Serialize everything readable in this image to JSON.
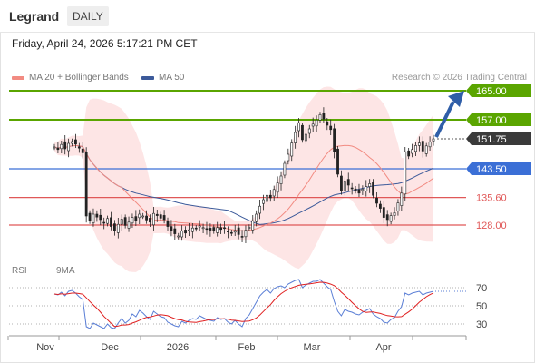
{
  "header": {
    "ticker": "Legrand",
    "period": "DAILY"
  },
  "datetime": "Friday, April 24, 2026 5:17:21 PM CET",
  "legend": {
    "ma20_label": "MA 20 + Bollinger Bands",
    "ma50_label": "MA 50",
    "credit": "Research © 2026 Trading Central"
  },
  "rsi_legend": {
    "rsi_label": "RSI",
    "ma_label": "9MA"
  },
  "colors": {
    "ma20": "#f28b82",
    "ma50": "#3c5a9a",
    "bollinger": "#fde1e1",
    "green_level": "#5aa500",
    "blue_level": "#3b6fd6",
    "red_level": "#e05858",
    "price_tag": "#3a3a3a",
    "arrow": "#2f5ea8",
    "rsi": "#5b7fd6",
    "rsi_ma": "#e02020"
  },
  "chart_data": {
    "type": "candlestick",
    "x_ticks": [
      "Nov",
      "Dec",
      "2026",
      "Feb",
      "Mar",
      "Apr"
    ],
    "y_ticks": [
      "165.00",
      "157.00",
      "151.75",
      "143.50",
      "135.60",
      "128.00"
    ],
    "levels": [
      {
        "label": "165.00",
        "value": 165.0,
        "kind": "resistance"
      },
      {
        "label": "157.00",
        "value": 157.0,
        "kind": "resistance"
      },
      {
        "label": "151.75",
        "value": 151.75,
        "kind": "last-price"
      },
      {
        "label": "143.50",
        "value": 143.5,
        "kind": "pivot"
      },
      {
        "label": "135.60",
        "value": 135.6,
        "kind": "support"
      },
      {
        "label": "128.00",
        "value": 128.0,
        "kind": "support"
      }
    ],
    "last_price": 151.75,
    "target": 165.0,
    "price_range": [
      122,
      168
    ],
    "closes": [
      149.5,
      148.8,
      150.2,
      149.0,
      150.5,
      151.0,
      150.3,
      149.2,
      147.9,
      130.5,
      129.1,
      131.0,
      130.2,
      129.5,
      128.7,
      129.8,
      127.6,
      126.4,
      128.2,
      129.6,
      127.9,
      128.8,
      130.1,
      129.3,
      131.0,
      130.5,
      129.4,
      128.8,
      131.2,
      130.6,
      129.9,
      129.5,
      127.6,
      126.5,
      125.6,
      125.0,
      126.4,
      125.8,
      126.7,
      127.2,
      127.0,
      127.8,
      127.3,
      126.9,
      126.6,
      126.4,
      127.3,
      126.8,
      127.1,
      126.2,
      125.8,
      126.5,
      125.4,
      124.8,
      126.6,
      127.4,
      129.2,
      131.0,
      133.2,
      135.0,
      136.2,
      135.5,
      137.8,
      139.6,
      141.5,
      145.0,
      147.5,
      150.6,
      153.5,
      156.2,
      151.5,
      153.0,
      154.5,
      155.8,
      156.9,
      158.4,
      157.2,
      155.5,
      154.3,
      148.2,
      142.0,
      137.4,
      140.1,
      139.0,
      138.2,
      137.5,
      136.8,
      137.9,
      138.6,
      139.4,
      136.2,
      134.0,
      132.6,
      130.1,
      129.5,
      130.6,
      131.4,
      134.1,
      136.8,
      148.2,
      147.0,
      148.8,
      149.9,
      150.6,
      148.4,
      149.8,
      150.9,
      151.75
    ],
    "rsi": {
      "ticks": [
        "70",
        "50",
        "30"
      ],
      "range": [
        20,
        80
      ],
      "values": [
        63,
        62,
        65,
        61,
        66,
        67,
        64,
        60,
        57,
        27,
        25,
        31,
        29,
        27,
        25,
        30,
        26,
        25,
        31,
        36,
        31,
        34,
        41,
        38,
        45,
        42,
        38,
        35,
        44,
        41,
        38,
        37,
        32,
        30,
        28,
        27,
        33,
        31,
        34,
        36,
        35,
        39,
        37,
        35,
        34,
        33,
        37,
        35,
        36,
        32,
        30,
        34,
        30,
        27,
        36,
        40,
        47,
        54,
        61,
        65,
        68,
        64,
        69,
        71,
        72,
        70,
        74,
        76,
        78,
        79,
        70,
        73,
        75,
        77,
        77,
        79,
        75,
        71,
        68,
        55,
        44,
        39,
        46,
        44,
        43,
        41,
        40,
        43,
        45,
        47,
        41,
        38,
        36,
        32,
        31,
        35,
        37,
        44,
        49,
        64,
        62,
        64,
        65,
        66,
        62,
        64,
        65,
        66
      ]
    }
  }
}
